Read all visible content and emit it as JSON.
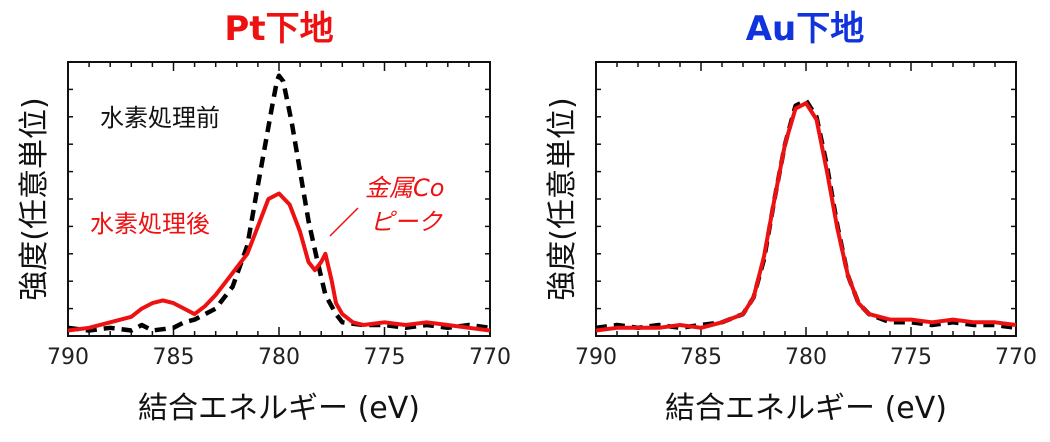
{
  "chart_data": [
    {
      "type": "line",
      "title": "Pt下地",
      "title_color": "#ee1111",
      "xlabel": "結合エネルギー (eV)",
      "ylabel": "強度(任意単位)",
      "xlim": [
        790,
        770
      ],
      "x_reversed": true,
      "ylim": [
        0,
        1.0
      ],
      "x_ticks": [
        790,
        785,
        780,
        775,
        770
      ],
      "x_tick_labels": [
        "790",
        "785",
        "780",
        "775",
        "770"
      ],
      "series": [
        {
          "name": "水素処理前",
          "color": "#000000",
          "style": "dashed",
          "x": [
            790,
            789,
            788,
            787,
            786.5,
            786,
            785,
            784.5,
            784,
            783,
            782.2,
            781.5,
            781,
            780.6,
            780.3,
            780.1,
            780,
            779.8,
            779.4,
            779,
            778.6,
            778.2,
            777.8,
            777.3,
            777,
            776,
            775,
            774,
            773,
            772,
            771,
            770
          ],
          "y": [
            0.03,
            0.02,
            0.03,
            0.02,
            0.04,
            0.02,
            0.03,
            0.05,
            0.06,
            0.1,
            0.18,
            0.33,
            0.55,
            0.72,
            0.85,
            0.93,
            0.95,
            0.93,
            0.78,
            0.6,
            0.42,
            0.28,
            0.15,
            0.08,
            0.05,
            0.04,
            0.04,
            0.03,
            0.04,
            0.03,
            0.04,
            0.03
          ]
        },
        {
          "name": "水素処理後",
          "color": "#ee1111",
          "style": "solid",
          "x": [
            790,
            789,
            788,
            787,
            786.5,
            786,
            785.5,
            785,
            784.5,
            784,
            783.5,
            783,
            782.5,
            782,
            781.5,
            781,
            780.5,
            780,
            779.5,
            779,
            778.6,
            778.3,
            778,
            777.8,
            777.5,
            777.3,
            777,
            776.5,
            776,
            775,
            774,
            773,
            772,
            771,
            770
          ],
          "y": [
            0.02,
            0.03,
            0.05,
            0.07,
            0.1,
            0.12,
            0.13,
            0.12,
            0.1,
            0.08,
            0.11,
            0.15,
            0.2,
            0.25,
            0.3,
            0.4,
            0.5,
            0.52,
            0.48,
            0.38,
            0.27,
            0.24,
            0.27,
            0.3,
            0.2,
            0.12,
            0.08,
            0.05,
            0.04,
            0.05,
            0.04,
            0.05,
            0.04,
            0.03,
            0.02
          ]
        }
      ],
      "annotations": [
        {
          "text": "水素処理前",
          "color": "#111111"
        },
        {
          "text": "水素処理後",
          "color": "#ee1111"
        },
        {
          "text": "金属Co",
          "color": "#ee1111"
        },
        {
          "text": "ピーク",
          "color": "#ee1111"
        }
      ]
    },
    {
      "type": "line",
      "title": "Au下地",
      "title_color": "#1133dd",
      "xlabel": "結合エネルギー (eV)",
      "ylabel": "強度(任意単位)",
      "xlim": [
        790,
        770
      ],
      "x_reversed": true,
      "ylim": [
        0,
        1.0
      ],
      "x_ticks": [
        790,
        785,
        780,
        775,
        770
      ],
      "x_tick_labels": [
        "790",
        "785",
        "780",
        "775",
        "770"
      ],
      "series": [
        {
          "name": "black dashed",
          "color": "#000000",
          "style": "dashed",
          "x": [
            790,
            789,
            788,
            787,
            786,
            785,
            784,
            783,
            782.5,
            782,
            781.5,
            781,
            780.5,
            780,
            779.5,
            779,
            778.5,
            778,
            777.5,
            777,
            776,
            775,
            774,
            773,
            772,
            771,
            770
          ],
          "y": [
            0.03,
            0.04,
            0.03,
            0.04,
            0.03,
            0.04,
            0.05,
            0.08,
            0.14,
            0.28,
            0.5,
            0.7,
            0.84,
            0.86,
            0.8,
            0.62,
            0.4,
            0.22,
            0.12,
            0.08,
            0.05,
            0.05,
            0.04,
            0.05,
            0.04,
            0.04,
            0.03
          ]
        },
        {
          "name": "red solid",
          "color": "#ee1111",
          "style": "solid",
          "x": [
            790,
            789,
            788,
            787,
            786,
            785,
            784,
            783,
            782.5,
            782,
            781.5,
            781,
            780.5,
            780,
            779.5,
            779,
            778.5,
            778,
            777.5,
            777,
            776,
            775,
            774,
            773,
            772,
            771,
            770
          ],
          "y": [
            0.02,
            0.03,
            0.03,
            0.03,
            0.04,
            0.03,
            0.05,
            0.08,
            0.14,
            0.29,
            0.5,
            0.7,
            0.83,
            0.85,
            0.79,
            0.6,
            0.39,
            0.22,
            0.12,
            0.08,
            0.06,
            0.06,
            0.05,
            0.06,
            0.05,
            0.05,
            0.04
          ]
        }
      ],
      "annotations": []
    }
  ]
}
